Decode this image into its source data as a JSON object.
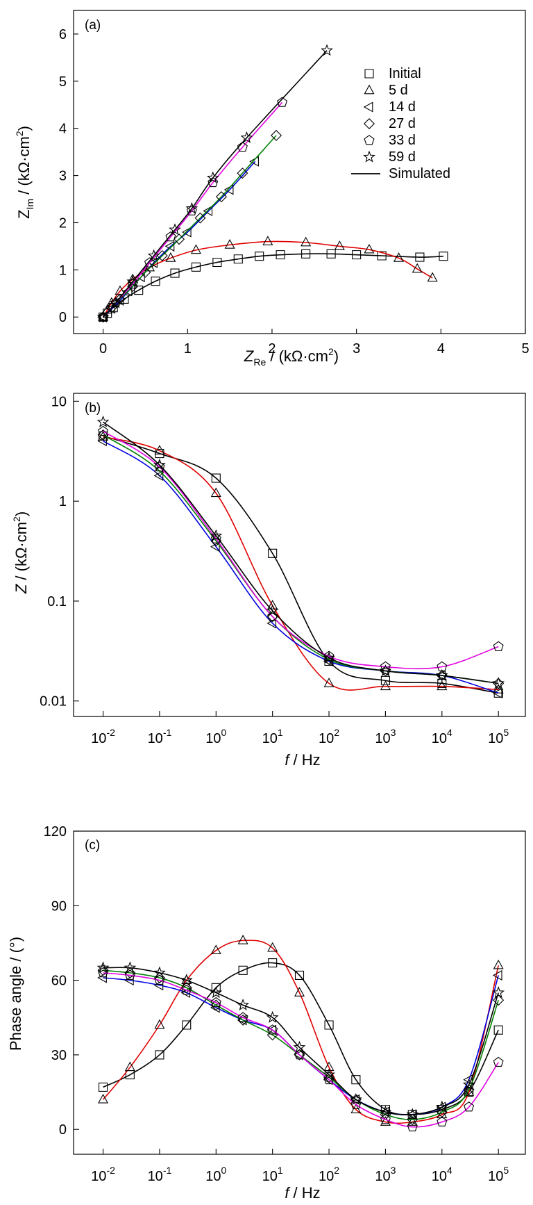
{
  "chart_data": [
    {
      "type": "scatter",
      "panel_label": "(a)",
      "xlabel": "Z_Re / (kΩ·cm²)",
      "ylabel": "Z_Im / (kΩ·cm²)",
      "xlim": [
        -0.35,
        5.0
      ],
      "ylim": [
        -0.35,
        6.5
      ],
      "xticks": [
        0,
        1,
        2,
        3,
        4,
        5
      ],
      "yticks": [
        0,
        1,
        2,
        3,
        4,
        5,
        6
      ],
      "legend": {
        "position": "top-right",
        "entries": [
          {
            "label": "Initial",
            "marker": "square"
          },
          {
            "label": "5 d",
            "marker": "triangle-up"
          },
          {
            "label": "14 d",
            "marker": "triangle-left"
          },
          {
            "label": "27 d",
            "marker": "diamond"
          },
          {
            "label": "33 d",
            "marker": "pentagon"
          },
          {
            "label": "59 d",
            "marker": "star"
          },
          {
            "label": "Simulated",
            "marker": "line"
          }
        ]
      },
      "series": [
        {
          "name": "Initial",
          "marker": "square",
          "fit_color": "#000000",
          "x": [
            0.0,
            0.05,
            0.12,
            0.25,
            0.42,
            0.62,
            0.85,
            1.1,
            1.35,
            1.6,
            1.85,
            2.1,
            2.4,
            2.7,
            3.0,
            3.3,
            3.75,
            4.03
          ],
          "y": [
            0.0,
            0.08,
            0.2,
            0.38,
            0.57,
            0.76,
            0.93,
            1.06,
            1.16,
            1.23,
            1.29,
            1.32,
            1.34,
            1.34,
            1.32,
            1.3,
            1.27,
            1.29
          ]
        },
        {
          "name": "5 d",
          "marker": "triangle-up",
          "x": [
            0.0,
            0.05,
            0.1,
            0.2,
            0.35,
            0.55,
            0.8,
            1.1,
            1.5,
            1.95,
            2.4,
            2.8,
            3.15,
            3.5,
            3.72,
            3.9
          ],
          "y": [
            0.0,
            0.15,
            0.3,
            0.55,
            0.8,
            1.05,
            1.25,
            1.42,
            1.53,
            1.6,
            1.58,
            1.5,
            1.43,
            1.25,
            1.02,
            0.83
          ]
        },
        {
          "name": "14 d",
          "marker": "triangle-left",
          "x": [
            0.0,
            0.1,
            0.2,
            0.3,
            0.45,
            0.6,
            0.8,
            1.0,
            1.25,
            1.5,
            1.8
          ],
          "y": [
            0.0,
            0.18,
            0.35,
            0.55,
            0.85,
            1.15,
            1.5,
            1.8,
            2.25,
            2.7,
            3.3
          ]
        },
        {
          "name": "27 d",
          "marker": "diamond",
          "x": [
            0.0,
            0.1,
            0.2,
            0.35,
            0.5,
            0.7,
            0.9,
            1.15,
            1.4,
            1.65,
            2.05
          ],
          "y": [
            0.0,
            0.2,
            0.38,
            0.65,
            0.95,
            1.3,
            1.65,
            2.1,
            2.55,
            3.05,
            3.85
          ]
        },
        {
          "name": "33 d",
          "marker": "pentagon",
          "x": [
            0.0,
            0.15,
            0.35,
            0.55,
            0.8,
            1.05,
            1.3,
            1.65,
            2.12
          ],
          "y": [
            0.0,
            0.3,
            0.7,
            1.15,
            1.7,
            2.25,
            2.85,
            3.6,
            4.55
          ]
        },
        {
          "name": "59 d",
          "marker": "star",
          "x": [
            0.0,
            0.15,
            0.35,
            0.6,
            0.85,
            1.05,
            1.3,
            1.7,
            2.65
          ],
          "y": [
            0.0,
            0.3,
            0.75,
            1.3,
            1.85,
            2.3,
            2.95,
            3.8,
            5.65
          ]
        }
      ]
    },
    {
      "type": "scatter",
      "panel_label": "(b)",
      "xlabel": "f / Hz",
      "ylabel": "Z / (kΩ·cm²)",
      "xscale": "log",
      "yscale": "log",
      "xlim": [
        0.003,
        300000
      ],
      "ylim": [
        0.007,
        12
      ],
      "xticks": [
        "10-2",
        "10-1",
        "100",
        "101",
        "102",
        "103",
        "104",
        "105"
      ],
      "yticks": [
        "0.01",
        "0.1",
        "1",
        "10"
      ],
      "series": [
        {
          "name": "Initial",
          "marker": "square",
          "x": [
            0.01,
            0.1,
            1,
            10,
            100,
            1000,
            10000,
            100000
          ],
          "y": [
            4.5,
            3.0,
            1.7,
            0.3,
            0.025,
            0.016,
            0.015,
            0.012
          ]
        },
        {
          "name": "5 d",
          "marker": "triangle-up",
          "x": [
            0.01,
            0.1,
            1,
            10,
            100,
            1000,
            10000,
            100000
          ],
          "y": [
            4.4,
            3.2,
            1.2,
            0.09,
            0.015,
            0.014,
            0.014,
            0.013
          ]
        },
        {
          "name": "14 d",
          "marker": "triangle-left",
          "x": [
            0.01,
            0.1,
            1,
            10,
            100,
            1000,
            10000,
            100000
          ],
          "y": [
            4.0,
            1.8,
            0.35,
            0.06,
            0.025,
            0.02,
            0.018,
            0.012
          ]
        },
        {
          "name": "27 d",
          "marker": "diamond",
          "x": [
            0.01,
            0.1,
            1,
            10,
            100,
            1000,
            10000,
            100000
          ],
          "y": [
            4.6,
            2.0,
            0.4,
            0.07,
            0.026,
            0.02,
            0.018,
            0.015
          ]
        },
        {
          "name": "33 d",
          "marker": "pentagon",
          "x": [
            0.01,
            0.1,
            1,
            10,
            100,
            1000,
            10000,
            100000
          ],
          "y": [
            5.0,
            2.2,
            0.42,
            0.07,
            0.028,
            0.022,
            0.022,
            0.035
          ]
        },
        {
          "name": "59 d",
          "marker": "star",
          "x": [
            0.01,
            0.1,
            1,
            10,
            100,
            1000,
            10000,
            100000
          ],
          "y": [
            6.2,
            2.3,
            0.45,
            0.08,
            0.027,
            0.02,
            0.018,
            0.015
          ]
        }
      ]
    },
    {
      "type": "scatter",
      "panel_label": "(c)",
      "xlabel": "f / Hz",
      "ylabel": "Phase angle / (°)",
      "xscale": "log",
      "xlim": [
        0.003,
        300000
      ],
      "ylim": [
        -10,
        120
      ],
      "xticks": [
        "10-2",
        "10-1",
        "100",
        "101",
        "102",
        "103",
        "104",
        "105"
      ],
      "yticks": [
        "0",
        "30",
        "60",
        "90",
        "120"
      ],
      "series": [
        {
          "name": "Initial",
          "marker": "square",
          "x": [
            0.01,
            0.03,
            0.1,
            0.3,
            1,
            3,
            10,
            30,
            100,
            300,
            1000,
            3000,
            10000,
            30000,
            100000
          ],
          "y": [
            17,
            22,
            30,
            42,
            57,
            64,
            67,
            62,
            42,
            20,
            8,
            6,
            8,
            15,
            40
          ]
        },
        {
          "name": "5 d",
          "marker": "triangle-up",
          "x": [
            0.01,
            0.03,
            0.1,
            0.3,
            1,
            3,
            10,
            30,
            100,
            300,
            1000,
            3000,
            10000,
            30000,
            100000
          ],
          "y": [
            12,
            25,
            42,
            60,
            72,
            76,
            73,
            55,
            25,
            8,
            3,
            3,
            6,
            15,
            66
          ]
        },
        {
          "name": "14 d",
          "marker": "triangle-left",
          "x": [
            0.01,
            0.03,
            0.1,
            0.3,
            1,
            3,
            10,
            30,
            100,
            300,
            1000,
            3000,
            10000,
            30000,
            100000
          ],
          "y": [
            61,
            60,
            58,
            55,
            49,
            44,
            40,
            30,
            20,
            12,
            7,
            6,
            9,
            20,
            62
          ]
        },
        {
          "name": "27 d",
          "marker": "diamond",
          "x": [
            0.01,
            0.03,
            0.1,
            0.3,
            1,
            3,
            10,
            30,
            100,
            300,
            1000,
            3000,
            10000,
            30000,
            100000
          ],
          "y": [
            64,
            63,
            61,
            57,
            50,
            44,
            38,
            30,
            21,
            12,
            6,
            4,
            7,
            16,
            52
          ]
        },
        {
          "name": "33 d",
          "marker": "pentagon",
          "x": [
            0.01,
            0.03,
            0.1,
            0.3,
            1,
            3,
            10,
            30,
            100,
            300,
            1000,
            3000,
            10000,
            30000,
            100000
          ],
          "y": [
            63,
            62,
            60,
            56,
            51,
            45,
            40,
            30,
            20,
            10,
            4,
            1,
            3,
            9,
            27
          ]
        },
        {
          "name": "59 d",
          "marker": "star",
          "x": [
            0.01,
            0.03,
            0.1,
            0.3,
            1,
            3,
            10,
            30,
            100,
            300,
            1000,
            3000,
            10000,
            30000,
            100000
          ],
          "y": [
            65,
            65,
            63,
            60,
            55,
            50,
            45,
            33,
            22,
            12,
            7,
            6,
            9,
            18,
            55
          ]
        }
      ]
    }
  ],
  "fit_colors": {
    "Initial": "#000000",
    "5 d": "#e00000",
    "14 d": "#0000e0",
    "27 d": "#008000",
    "33 d": "#e000e0",
    "59 d": "#000000"
  }
}
